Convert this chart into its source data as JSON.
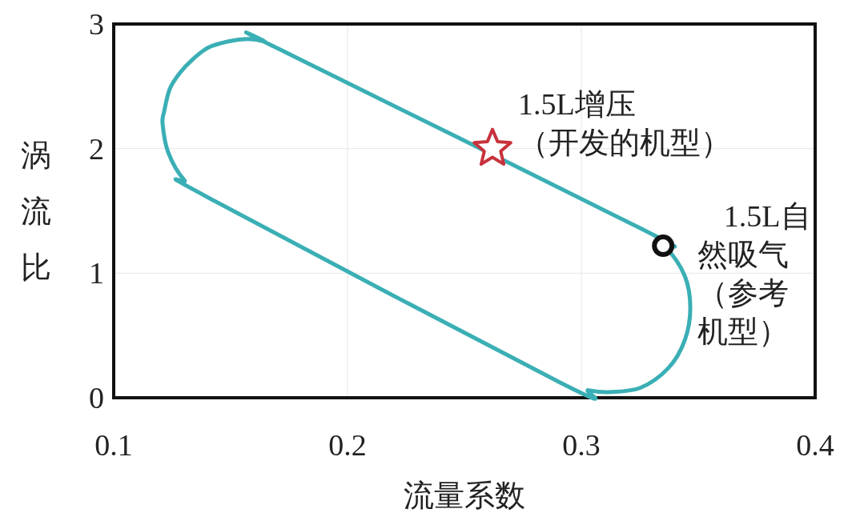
{
  "chart_data": {
    "type": "scatter",
    "xlabel": "流量系数",
    "ylabel": "涡流比",
    "xlim": [
      0.1,
      0.4
    ],
    "ylim": [
      0,
      3
    ],
    "xticks": [
      0.1,
      0.2,
      0.3,
      0.4
    ],
    "yticks": [
      0,
      1,
      2,
      3
    ],
    "grid": true,
    "series": [
      {
        "color": "#c8323c",
        "marker": "star",
        "x": [
          0.262
        ],
        "values": [
          2.0
        ]
      },
      {
        "color": "#111111",
        "marker": "circle",
        "x": [
          0.335
        ],
        "values": [
          1.22
        ]
      }
    ],
    "annotations": [
      {
        "text": "1.5L增压（开发的机型）",
        "x": 0.262,
        "y": 2.0
      },
      {
        "text": "1.5L自然吸气（参考机型）",
        "x": 0.335,
        "y": 1.22
      }
    ]
  }
}
